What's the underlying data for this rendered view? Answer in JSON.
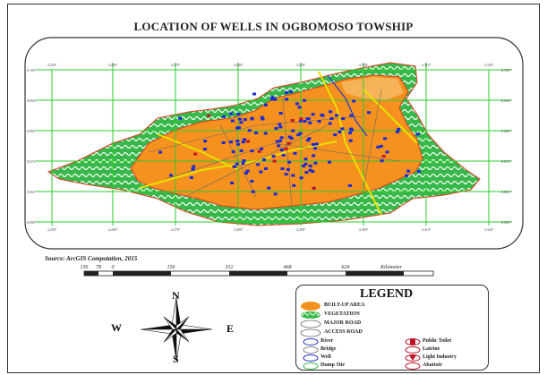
{
  "map": {
    "title": "LOCATION OF WELLS IN OGBOMOSO TOWSHIP",
    "source_note": "Source: ArcGIS Computation, 2015",
    "grid_labels_top": [
      "4.250°",
      "4.260°",
      "4.270°",
      "4.280°",
      "4.290°",
      "4.300°",
      "4.310°",
      "4.320°"
    ],
    "grid_labels_left": [
      "8.105°",
      "8.094°",
      "8.083°",
      "8.072°",
      "8.061°",
      "8.050°"
    ],
    "colors": {
      "built_up": "#f5911e",
      "vegetation": "#38b84a",
      "grid": "#2ecc2e",
      "road": "#e8e000",
      "boundary": "#e03c20",
      "well": "#1c2bd6",
      "river": "#1e3cc8"
    }
  },
  "scale_bar": {
    "ticks": [
      "156",
      "78",
      "0",
      "156",
      "312",
      "468",
      "624"
    ],
    "unit": "Kilometer"
  },
  "compass": {
    "n": "N",
    "s": "S",
    "e": "E",
    "w": "W"
  },
  "legend": {
    "title": "LEGEND",
    "items": [
      {
        "label": "BUILT-UP AREA",
        "icon": "built-up-area-swatch"
      },
      {
        "label": "VEGETATION",
        "icon": "vegetation-swatch"
      },
      {
        "label": "MAJOR ROAD",
        "icon": "major-road-symbol"
      },
      {
        "label": "ACCESS ROAD",
        "icon": "access-road-symbol"
      }
    ],
    "symbols_left": [
      {
        "label": "River",
        "icon": "river-icon"
      },
      {
        "label": "Bridge",
        "icon": "bridge-icon"
      },
      {
        "label": "Well",
        "icon": "well-icon"
      },
      {
        "label": "Dump Site",
        "icon": "dump-site-icon"
      }
    ],
    "symbols_right": [
      {
        "label": "Public Toilet",
        "icon": "public-toilet-icon"
      },
      {
        "label": "Latrine",
        "icon": "latrine-icon"
      },
      {
        "label": "Light Industry",
        "icon": "light-industry-icon"
      },
      {
        "label": "Abattoir",
        "icon": "abattoir-icon"
      }
    ]
  }
}
